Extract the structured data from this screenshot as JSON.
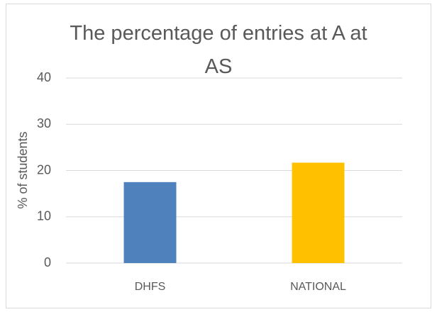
{
  "chart_data": {
    "type": "bar",
    "title": "The percentage of entries at A at AS",
    "y_label": "% of students",
    "categories": [
      "DHFS",
      "NATIONAL"
    ],
    "values": [
      17.5,
      21.7
    ],
    "colors": [
      "#4f81bd",
      "#ffc000"
    ],
    "ylim": [
      0,
      40
    ],
    "yticks": [
      0,
      10,
      20,
      30,
      40
    ],
    "grid": true
  }
}
